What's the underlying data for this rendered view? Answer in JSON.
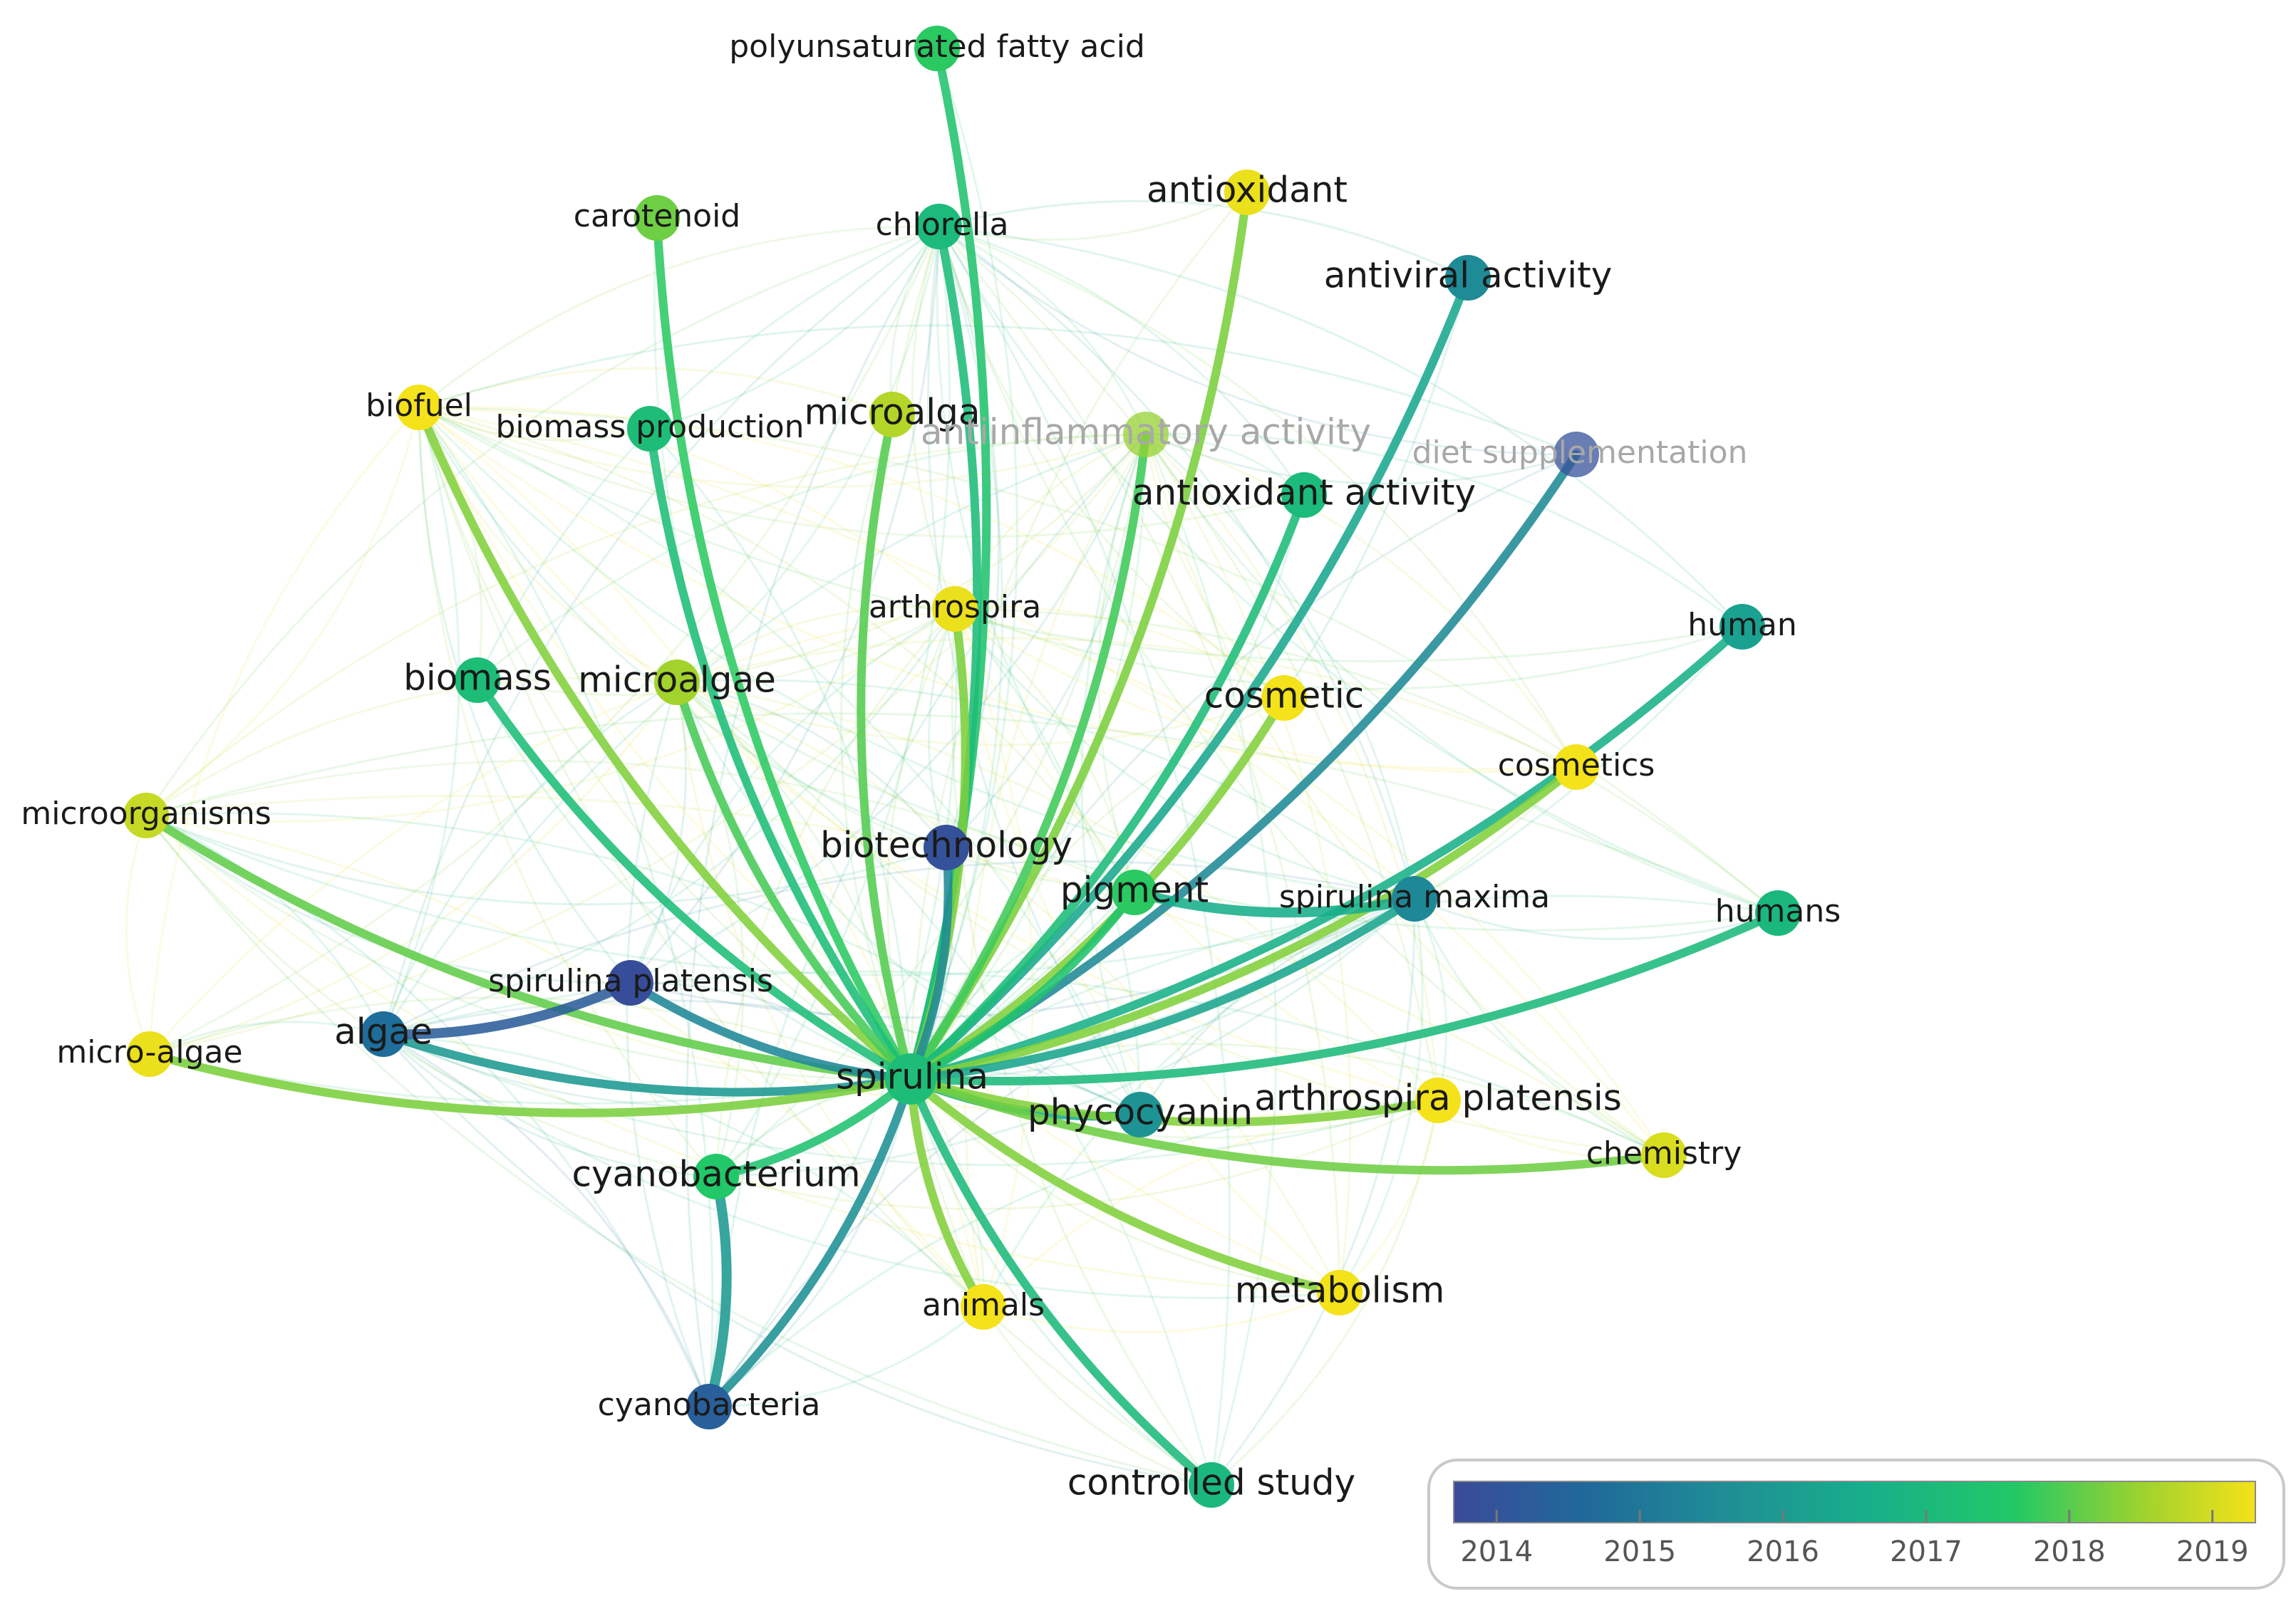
{
  "colors": {
    "scale": [
      "#3b4a99",
      "#1f6a9a",
      "#1f8e96",
      "#17b08a",
      "#22c866",
      "#9fd22e",
      "#f4e21a"
    ]
  },
  "legend": {
    "ticks": [
      "2014",
      "2015",
      "2016",
      "2017",
      "2018",
      "2019"
    ],
    "min": 2013.7,
    "max": 2019.3
  },
  "nodes": [
    {
      "id": "spirulina",
      "label": "spirulina",
      "year": 2017.0,
      "size": "big"
    },
    {
      "id": "polyunsaturated",
      "label": "polyunsaturated fatty acid",
      "year": 2017.5
    },
    {
      "id": "carotenoid",
      "label": "carotenoid",
      "year": 2018.0
    },
    {
      "id": "chlorella",
      "label": "chlorella",
      "year": 2016.9
    },
    {
      "id": "antioxidant",
      "label": "antioxidant",
      "year": 2019.2,
      "size": "big"
    },
    {
      "id": "antiviral",
      "label": "antiviral activity",
      "year": 2015.5,
      "size": "big"
    },
    {
      "id": "biofuel",
      "label": "biofuel",
      "year": 2019.3
    },
    {
      "id": "biomassprod",
      "label": "biomass production",
      "year": 2017.0
    },
    {
      "id": "microalga",
      "label": "microalga",
      "year": 2018.6,
      "size": "big"
    },
    {
      "id": "antiinflam",
      "label": "antiinflammatory activity",
      "year": 2018.3,
      "faded": true,
      "size": "big"
    },
    {
      "id": "dietsupp",
      "label": "diet supplementation",
      "year": 2013.9,
      "faded": true
    },
    {
      "id": "antioxact",
      "label": "antioxidant activity",
      "year": 2016.9,
      "size": "big"
    },
    {
      "id": "arthrospira",
      "label": "arthrospira",
      "year": 2019.2
    },
    {
      "id": "human",
      "label": "human",
      "year": 2016.1
    },
    {
      "id": "biomass",
      "label": "biomass",
      "year": 2017.0,
      "size": "big"
    },
    {
      "id": "microalgae",
      "label": "microalgae",
      "year": 2018.4,
      "size": "big"
    },
    {
      "id": "cosmetic",
      "label": "cosmetic",
      "year": 2019.3,
      "size": "big"
    },
    {
      "id": "cosmetics",
      "label": "cosmetics",
      "year": 2019.3
    },
    {
      "id": "microorganisms",
      "label": "microorganisms",
      "year": 2018.8
    },
    {
      "id": "biotechnology",
      "label": "biotechnology",
      "year": 2013.9,
      "size": "big"
    },
    {
      "id": "pigment",
      "label": "pigment",
      "year": 2017.5,
      "size": "big"
    },
    {
      "id": "spirmaxima",
      "label": "spirulina maxima",
      "year": 2015.4
    },
    {
      "id": "humans",
      "label": "humans",
      "year": 2016.8
    },
    {
      "id": "spirplatensis",
      "label": "spirulina platensis",
      "year": 2013.8
    },
    {
      "id": "algae",
      "label": "algae",
      "year": 2014.7,
      "size": "big"
    },
    {
      "id": "microalgae2",
      "label": "micro-algae",
      "year": 2019.2
    },
    {
      "id": "phycocyanin",
      "label": "phycocyanin",
      "year": 2015.7,
      "size": "big"
    },
    {
      "id": "arthroplat",
      "label": "arthrospira platensis",
      "year": 2019.3,
      "size": "big"
    },
    {
      "id": "chemistry",
      "label": "chemistry",
      "year": 2019.0
    },
    {
      "id": "cyanobacterium",
      "label": "cyanobacterium",
      "year": 2017.4,
      "size": "big"
    },
    {
      "id": "animals",
      "label": "animals",
      "year": 2019.3
    },
    {
      "id": "metabolism",
      "label": "metabolism",
      "year": 2019.3,
      "size": "big"
    },
    {
      "id": "cyanobacteria",
      "label": "cyanobacteria",
      "year": 2014.3
    },
    {
      "id": "controlled",
      "label": "controlled study",
      "year": 2016.8,
      "size": "big"
    }
  ],
  "strong_links": [
    [
      "spirulina",
      "polyunsaturated"
    ],
    [
      "spirulina",
      "carotenoid"
    ],
    [
      "spirulina",
      "chlorella"
    ],
    [
      "spirulina",
      "antioxidant"
    ],
    [
      "spirulina",
      "antiviral"
    ],
    [
      "spirulina",
      "biofuel"
    ],
    [
      "spirulina",
      "biomassprod"
    ],
    [
      "spirulina",
      "microalga"
    ],
    [
      "spirulina",
      "antiinflam"
    ],
    [
      "spirulina",
      "dietsupp"
    ],
    [
      "spirulina",
      "antioxact"
    ],
    [
      "spirulina",
      "arthrospira"
    ],
    [
      "spirulina",
      "human"
    ],
    [
      "spirulina",
      "biomass"
    ],
    [
      "spirulina",
      "microalgae"
    ],
    [
      "spirulina",
      "cosmetic"
    ],
    [
      "spirulina",
      "cosmetics"
    ],
    [
      "spirulina",
      "microorganisms"
    ],
    [
      "spirulina",
      "biotechnology"
    ],
    [
      "spirulina",
      "pigment"
    ],
    [
      "spirulina",
      "spirmaxima"
    ],
    [
      "spirulina",
      "humans"
    ],
    [
      "spirulina",
      "spirplatensis"
    ],
    [
      "spirulina",
      "algae"
    ],
    [
      "spirulina",
      "microalgae2"
    ],
    [
      "spirulina",
      "phycocyanin"
    ],
    [
      "spirulina",
      "arthroplat"
    ],
    [
      "spirulina",
      "chemistry"
    ],
    [
      "spirulina",
      "cyanobacterium"
    ],
    [
      "spirulina",
      "animals"
    ],
    [
      "spirulina",
      "metabolism"
    ],
    [
      "spirulina",
      "cyanobacteria"
    ],
    [
      "spirulina",
      "controlled"
    ],
    [
      "algae",
      "spirplatensis"
    ],
    [
      "pigment",
      "spirmaxima"
    ],
    [
      "cyanobacterium",
      "cyanobacteria"
    ]
  ]
}
